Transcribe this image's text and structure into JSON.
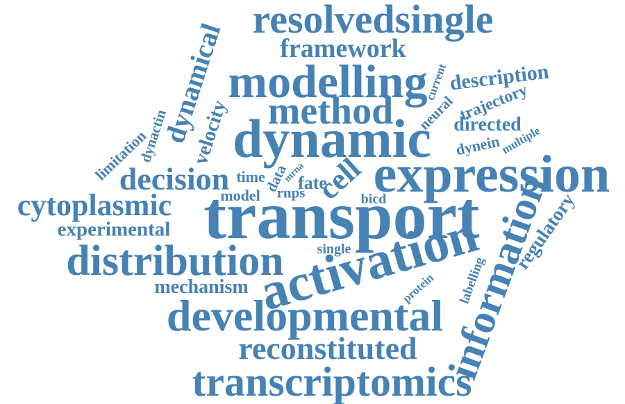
{
  "title": "Word cloud",
  "color": "#4682b4",
  "words": [
    {
      "id": "resolvedsingle",
      "text": "resolvedsingle"
    },
    {
      "id": "framework",
      "text": "framework"
    },
    {
      "id": "modelling",
      "text": "modelling"
    },
    {
      "id": "method",
      "text": "method"
    },
    {
      "id": "dynamic",
      "text": "dynamic"
    },
    {
      "id": "expression",
      "text": "expression"
    },
    {
      "id": "transport",
      "text": "transport"
    },
    {
      "id": "cytoplasmic",
      "text": "cytoplasmic"
    },
    {
      "id": "experimental",
      "text": "experimental"
    },
    {
      "id": "distribution",
      "text": "distribution"
    },
    {
      "id": "activation",
      "text": "activation"
    },
    {
      "id": "mechanism",
      "text": "mechanism"
    },
    {
      "id": "developmental",
      "text": "developmental"
    },
    {
      "id": "reconstituted",
      "text": "reconstituted"
    },
    {
      "id": "transcriptomics",
      "text": "transcriptomics"
    },
    {
      "id": "information",
      "text": "information"
    },
    {
      "id": "regulatory",
      "text": "regulatory"
    },
    {
      "id": "dynamical",
      "text": "dynamical"
    },
    {
      "id": "velocity",
      "text": "velocity"
    },
    {
      "id": "dynactin",
      "text": "dynactin"
    },
    {
      "id": "limitation",
      "text": "limitation"
    },
    {
      "id": "decision",
      "text": "decision"
    },
    {
      "id": "time",
      "text": "time"
    },
    {
      "id": "data",
      "text": "data"
    },
    {
      "id": "mrna",
      "text": "mrna"
    },
    {
      "id": "fate",
      "text": "fate"
    },
    {
      "id": "rnps",
      "text": "rnps"
    },
    {
      "id": "cell",
      "text": "cell"
    },
    {
      "id": "model",
      "text": "model"
    },
    {
      "id": "bicd",
      "text": "bicd"
    },
    {
      "id": "single",
      "text": "single"
    },
    {
      "id": "protein",
      "text": "protein"
    },
    {
      "id": "labelling",
      "text": "labelling"
    },
    {
      "id": "description",
      "text": "description"
    },
    {
      "id": "current",
      "text": "current"
    },
    {
      "id": "neural",
      "text": "neural"
    },
    {
      "id": "trajectory",
      "text": "trajectory"
    },
    {
      "id": "directed",
      "text": "directed"
    },
    {
      "id": "dynein",
      "text": "dynein"
    },
    {
      "id": "multiple",
      "text": "multiple"
    }
  ]
}
